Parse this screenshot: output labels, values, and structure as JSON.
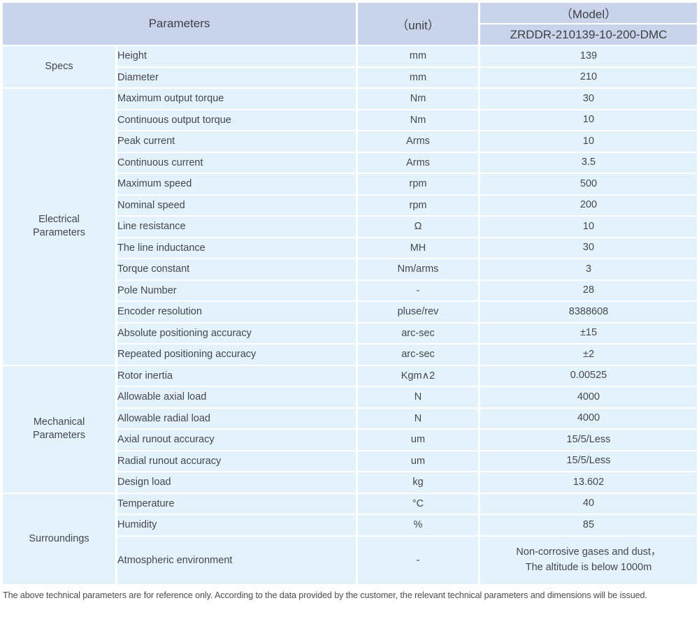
{
  "header": {
    "parameters_label": "Parameters",
    "unit_label": "（unit）",
    "model_label": "（Model）",
    "model_value": "ZRDDR-210139-10-200-DMC"
  },
  "sections": [
    {
      "category": "Specs",
      "rows": [
        {
          "param": "Height",
          "unit": "mm",
          "value": "139"
        },
        {
          "param": "Diameter",
          "unit": "mm",
          "value": "210"
        }
      ]
    },
    {
      "category": "Electrical\nParameters",
      "rows": [
        {
          "param": "Maximum output torque",
          "unit": "Nm",
          "value": "30"
        },
        {
          "param": "Continuous output torque",
          "unit": "Nm",
          "value": "10"
        },
        {
          "param": "Peak current",
          "unit": "Arms",
          "value": "10"
        },
        {
          "param": "Continuous current",
          "unit": "Arms",
          "value": "3.5"
        },
        {
          "param": "Maximum speed",
          "unit": "rpm",
          "value": "500"
        },
        {
          "param": "Nominal speed",
          "unit": "rpm",
          "value": "200"
        },
        {
          "param": "Line resistance",
          "unit": "Ω",
          "value": "10"
        },
        {
          "param": "The line inductance",
          "unit": "MH",
          "value": "30"
        },
        {
          "param": "Torque constant",
          "unit": "Nm/arms",
          "value": "3"
        },
        {
          "param": "Pole Number",
          "unit": "-",
          "value": "28"
        },
        {
          "param": "Encoder resolution",
          "unit": "pluse/rev",
          "value": "8388608"
        },
        {
          "param": "Absolute positioning accuracy",
          "unit": "arc-sec",
          "value": "±15"
        },
        {
          "param": "Repeated positioning accuracy",
          "unit": "arc-sec",
          "value": "±2"
        }
      ]
    },
    {
      "category": "Mechanical\nParameters",
      "rows": [
        {
          "param": "Rotor inertia",
          "unit": "Kgm∧2",
          "value": "0.00525"
        },
        {
          "param": "Allowable axial load",
          "unit": "N",
          "value": "4000"
        },
        {
          "param": "Allowable radial load",
          "unit": "N",
          "value": "4000"
        },
        {
          "param": "Axial runout accuracy",
          "unit": "um",
          "value": "15/5/Less"
        },
        {
          "param": "Radial runout accuracy",
          "unit": "um",
          "value": "15/5/Less"
        },
        {
          "param": "Design load",
          "unit": "kg",
          "value": "13.602"
        }
      ]
    },
    {
      "category": "Surroundings",
      "rows": [
        {
          "param": "Temperature",
          "unit": "°C",
          "value": "40"
        },
        {
          "param": "Humidity",
          "unit": "%",
          "value": "85"
        },
        {
          "param": "Atmospheric environment",
          "unit": "-",
          "value": "Non-corrosive gases and dust，\nThe altitude is below 1000m"
        }
      ]
    }
  ],
  "footer": {
    "note": "The above technical parameters are for reference only. According to the data provided by the customer, the relevant technical parameters and dimensions will be issued."
  },
  "colors": {
    "header_bg": "#c9d3ea",
    "row_bg": "#e4f2fb",
    "separator": "#ffffff",
    "text": "#44474c"
  }
}
